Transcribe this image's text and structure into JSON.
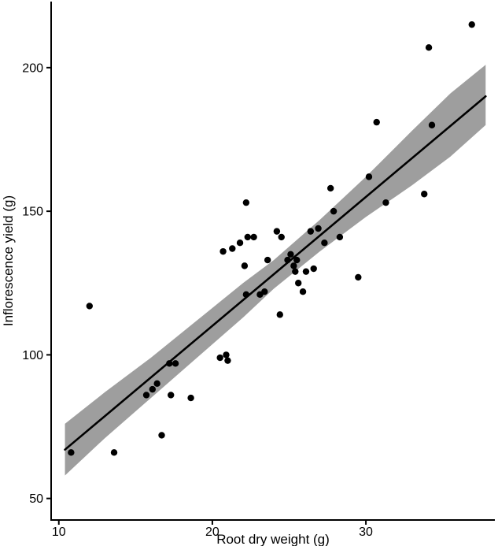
{
  "chart_data": {
    "type": "scatter",
    "title": "",
    "xlabel": "Root dry weight (g)",
    "ylabel": "Inflorescence yield (g)",
    "xlim": [
      9.5,
      38.4
    ],
    "ylim": [
      42.5,
      223
    ],
    "x_ticks": [
      10,
      20,
      30
    ],
    "y_ticks": [
      50,
      100,
      150,
      200
    ],
    "grid": false,
    "legend": null,
    "colors": {
      "point": "#000000",
      "line": "#000000",
      "band": "#9e9e9e",
      "axis": "#000000",
      "background": "#ffffff"
    },
    "points": [
      [
        10.8,
        66
      ],
      [
        12.0,
        117
      ],
      [
        13.6,
        66
      ],
      [
        15.7,
        86
      ],
      [
        16.1,
        88
      ],
      [
        16.4,
        90
      ],
      [
        16.7,
        72
      ],
      [
        17.2,
        97
      ],
      [
        17.6,
        97
      ],
      [
        17.3,
        86
      ],
      [
        18.6,
        85
      ],
      [
        20.5,
        99
      ],
      [
        20.9,
        100
      ],
      [
        21.0,
        98
      ],
      [
        20.7,
        136
      ],
      [
        21.3,
        137
      ],
      [
        21.8,
        139
      ],
      [
        22.2,
        153
      ],
      [
        22.3,
        141
      ],
      [
        22.7,
        141
      ],
      [
        22.1,
        131
      ],
      [
        22.2,
        121
      ],
      [
        23.1,
        121
      ],
      [
        23.4,
        122
      ],
      [
        23.6,
        133
      ],
      [
        24.2,
        143
      ],
      [
        24.5,
        141
      ],
      [
        24.4,
        114
      ],
      [
        24.9,
        133
      ],
      [
        25.1,
        135
      ],
      [
        25.3,
        131
      ],
      [
        25.4,
        129
      ],
      [
        25.5,
        133
      ],
      [
        25.6,
        125
      ],
      [
        25.9,
        122
      ],
      [
        26.1,
        129
      ],
      [
        26.4,
        143
      ],
      [
        26.6,
        130
      ],
      [
        26.9,
        144
      ],
      [
        27.3,
        139
      ],
      [
        27.7,
        158
      ],
      [
        27.9,
        150
      ],
      [
        28.3,
        141
      ],
      [
        29.5,
        127
      ],
      [
        30.2,
        162
      ],
      [
        30.7,
        181
      ],
      [
        31.3,
        153
      ],
      [
        33.8,
        156
      ],
      [
        34.1,
        207
      ],
      [
        34.3,
        180
      ],
      [
        36.9,
        215
      ]
    ],
    "regression_line": {
      "x1": 10.4,
      "y1": 67,
      "x2": 37.8,
      "y2": 190
    },
    "confidence_band": [
      {
        "x": 10.4,
        "lower": 58,
        "upper": 76
      },
      {
        "x": 13.0,
        "lower": 71,
        "upper": 87
      },
      {
        "x": 16.0,
        "lower": 85,
        "upper": 99
      },
      {
        "x": 19.0,
        "lower": 99,
        "upper": 112
      },
      {
        "x": 22.0,
        "lower": 113,
        "upper": 125
      },
      {
        "x": 24.0,
        "lower": 123,
        "upper": 133
      },
      {
        "x": 27.0,
        "lower": 136,
        "upper": 147
      },
      {
        "x": 30.0,
        "lower": 148,
        "upper": 162
      },
      {
        "x": 33.0,
        "lower": 159,
        "upper": 178
      },
      {
        "x": 35.5,
        "lower": 169,
        "upper": 191
      },
      {
        "x": 37.8,
        "lower": 180,
        "upper": 201
      }
    ]
  }
}
